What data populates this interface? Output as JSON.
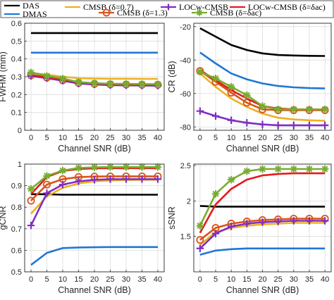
{
  "legend": [
    {
      "key": "das",
      "label": "DAS",
      "color": "#000000",
      "marker": "none"
    },
    {
      "key": "dmas",
      "label": "DMAS",
      "color": "#1f77d4",
      "marker": "none"
    },
    {
      "key": "cmsb07",
      "label": "CMSB (δ=0.7)",
      "color": "#edb120",
      "marker": "none"
    },
    {
      "key": "cmsb13",
      "label": "CMSB (δ=1.3)",
      "color": "#d95319",
      "marker": "circle"
    },
    {
      "key": "locw",
      "label": "LOCw-CMSB",
      "color": "#7e2fc4",
      "marker": "plus"
    },
    {
      "key": "locwcmsb",
      "label": "LOCw-CMSB (δ=δac)",
      "color": "#e31a1c",
      "marker": "none"
    },
    {
      "key": "cmsbac",
      "label": "CMSB (δ=δac)",
      "color": "#77ac30",
      "marker": "star"
    }
  ],
  "chart_data": [
    {
      "type": "line",
      "panel": "top-left",
      "xlabel": "Channel SNR (dB)",
      "ylabel": "FWHM (mm)",
      "x": [
        0,
        5,
        10,
        15,
        20,
        25,
        30,
        35,
        40
      ],
      "xlim": [
        -2,
        42
      ],
      "ylim": [
        0,
        0.6
      ],
      "yticks": [
        0,
        0.1,
        0.2,
        0.3,
        0.4,
        0.5,
        0.6
      ],
      "ytick_labels": [
        "0",
        "0.1",
        "0.2",
        "0.3",
        "0.4",
        "0.5",
        "0.6"
      ],
      "grid": true,
      "series": [
        {
          "name": "DAS",
          "values": [
            0.545,
            0.545,
            0.545,
            0.545,
            0.545,
            0.545,
            0.545,
            0.545,
            0.545
          ]
        },
        {
          "name": "DMAS",
          "values": [
            0.435,
            0.435,
            0.435,
            0.435,
            0.435,
            0.435,
            0.435,
            0.435,
            0.435
          ]
        },
        {
          "name": "CMSB (δ=0.7)",
          "values": [
            0.322,
            0.312,
            0.3,
            0.292,
            0.29,
            0.289,
            0.289,
            0.288,
            0.288
          ]
        },
        {
          "name": "CMSB (δ=1.3)",
          "values": [
            0.308,
            0.295,
            0.28,
            0.265,
            0.26,
            0.257,
            0.256,
            0.255,
            0.255
          ]
        },
        {
          "name": "LOCw-CMSB",
          "values": [
            0.304,
            0.292,
            0.278,
            0.262,
            0.257,
            0.253,
            0.252,
            0.251,
            0.25
          ]
        },
        {
          "name": "LOCw-CMSB (δ=δac)",
          "values": [
            0.31,
            0.298,
            0.285,
            0.268,
            0.262,
            0.259,
            0.258,
            0.257,
            0.257
          ]
        },
        {
          "name": "CMSB (δ=δac)",
          "values": [
            0.324,
            0.305,
            0.29,
            0.27,
            0.264,
            0.261,
            0.26,
            0.259,
            0.258
          ]
        }
      ]
    },
    {
      "type": "line",
      "panel": "top-right",
      "xlabel": "Channel SNR (dB)",
      "ylabel": "CR (dB)",
      "x": [
        0,
        5,
        10,
        15,
        20,
        25,
        30,
        35,
        40
      ],
      "xlim": [
        -2,
        42
      ],
      "ylim": [
        -82,
        -18
      ],
      "yticks": [
        -80,
        -60,
        -40,
        -20
      ],
      "ytick_labels": [
        "-80",
        "-60",
        "-40",
        "-20"
      ],
      "grid": true,
      "series": [
        {
          "name": "DAS",
          "values": [
            -21,
            -26,
            -31,
            -34,
            -36,
            -37,
            -37.3,
            -37.5,
            -37.6
          ]
        },
        {
          "name": "DMAS",
          "values": [
            -35.5,
            -42,
            -48,
            -51.5,
            -54,
            -55.5,
            -56.3,
            -56.8,
            -57
          ]
        },
        {
          "name": "CMSB (δ=0.7)",
          "values": [
            -48,
            -56,
            -63,
            -68,
            -72,
            -74.5,
            -75.5,
            -76,
            -76.3
          ]
        },
        {
          "name": "CMSB (δ=1.3)",
          "values": [
            -46.5,
            -53,
            -59.5,
            -65.5,
            -69.5,
            -70,
            -70,
            -70,
            -70
          ]
        },
        {
          "name": "LOCw-CMSB",
          "values": [
            -70.5,
            -73.5,
            -76,
            -77.5,
            -78.5,
            -79,
            -79,
            -79,
            -79
          ]
        },
        {
          "name": "LOCw-CMSB (δ=δac)",
          "values": [
            -46,
            -52,
            -58,
            -63,
            -67.5,
            -69,
            -69.5,
            -69.5,
            -69.5
          ]
        },
        {
          "name": "CMSB (δ=δac)",
          "values": [
            -47,
            -51,
            -56,
            -61,
            -67.5,
            -69.5,
            -69.5,
            -69.5,
            -69.5
          ]
        }
      ]
    },
    {
      "type": "line",
      "panel": "bottom-left",
      "xlabel": "Channel SNR (dB)",
      "ylabel": "gCNR",
      "x": [
        0,
        5,
        10,
        15,
        20,
        25,
        30,
        35,
        40
      ],
      "xlim": [
        -2,
        42
      ],
      "ylim": [
        0.5,
        1.0
      ],
      "yticks": [
        0.5,
        0.6,
        0.7,
        0.8,
        0.9,
        1
      ],
      "ytick_labels": [
        "0.5",
        "0.6",
        "0.7",
        "0.8",
        "0.9",
        "1"
      ],
      "grid": true,
      "series": [
        {
          "name": "DAS",
          "values": [
            0.86,
            0.86,
            0.858,
            0.858,
            0.858,
            0.858,
            0.858,
            0.858,
            0.858
          ]
        },
        {
          "name": "DMAS",
          "values": [
            0.532,
            0.588,
            0.61,
            0.613,
            0.614,
            0.615,
            0.615,
            0.615,
            0.615
          ]
        },
        {
          "name": "CMSB (δ=0.7)",
          "values": [
            0.77,
            0.85,
            0.89,
            0.91,
            0.92,
            0.924,
            0.926,
            0.927,
            0.927
          ]
        },
        {
          "name": "CMSB (δ=1.3)",
          "values": [
            0.83,
            0.905,
            0.93,
            0.94,
            0.942,
            0.943,
            0.943,
            0.943,
            0.943
          ]
        },
        {
          "name": "LOCw-CMSB",
          "values": [
            0.715,
            0.865,
            0.905,
            0.92,
            0.927,
            0.93,
            0.93,
            0.93,
            0.93
          ]
        },
        {
          "name": "LOCw-CMSB (δ=δac)",
          "values": [
            0.86,
            0.94,
            0.968,
            0.977,
            0.98,
            0.981,
            0.981,
            0.981,
            0.981
          ]
        },
        {
          "name": "CMSB (δ=δac)",
          "values": [
            0.885,
            0.945,
            0.97,
            0.982,
            0.985,
            0.986,
            0.986,
            0.986,
            0.986
          ]
        }
      ]
    },
    {
      "type": "line",
      "panel": "bottom-right",
      "xlabel": "Channel SNR (dB)",
      "ylabel": "sSNR",
      "x": [
        0,
        5,
        10,
        15,
        20,
        25,
        30,
        35,
        40
      ],
      "xlim": [
        -2,
        42
      ],
      "ylim": [
        1.0,
        2.52
      ],
      "yticks": [
        1.5,
        2,
        2.5
      ],
      "ytick_labels": [
        "1.5",
        "2",
        "2.5"
      ],
      "grid": true,
      "series": [
        {
          "name": "DAS",
          "values": [
            1.93,
            1.92,
            1.92,
            1.92,
            1.92,
            1.92,
            1.92,
            1.92,
            1.92
          ]
        },
        {
          "name": "DMAS",
          "values": [
            1.24,
            1.3,
            1.32,
            1.33,
            1.33,
            1.33,
            1.33,
            1.33,
            1.33
          ]
        },
        {
          "name": "CMSB (δ=0.7)",
          "values": [
            1.38,
            1.56,
            1.62,
            1.65,
            1.67,
            1.68,
            1.69,
            1.69,
            1.69
          ]
        },
        {
          "name": "CMSB (δ=1.3)",
          "values": [
            1.45,
            1.62,
            1.68,
            1.71,
            1.73,
            1.74,
            1.75,
            1.75,
            1.75
          ]
        },
        {
          "name": "LOCw-CMSB",
          "values": [
            1.33,
            1.54,
            1.64,
            1.68,
            1.7,
            1.71,
            1.72,
            1.72,
            1.72
          ]
        },
        {
          "name": "LOCw-CMSB (δ=δac)",
          "values": [
            1.55,
            1.95,
            2.17,
            2.3,
            2.36,
            2.38,
            2.39,
            2.39,
            2.39
          ]
        },
        {
          "name": "CMSB (δ=δac)",
          "values": [
            1.65,
            2.1,
            2.3,
            2.42,
            2.45,
            2.45,
            2.45,
            2.45,
            2.45
          ]
        }
      ]
    }
  ]
}
